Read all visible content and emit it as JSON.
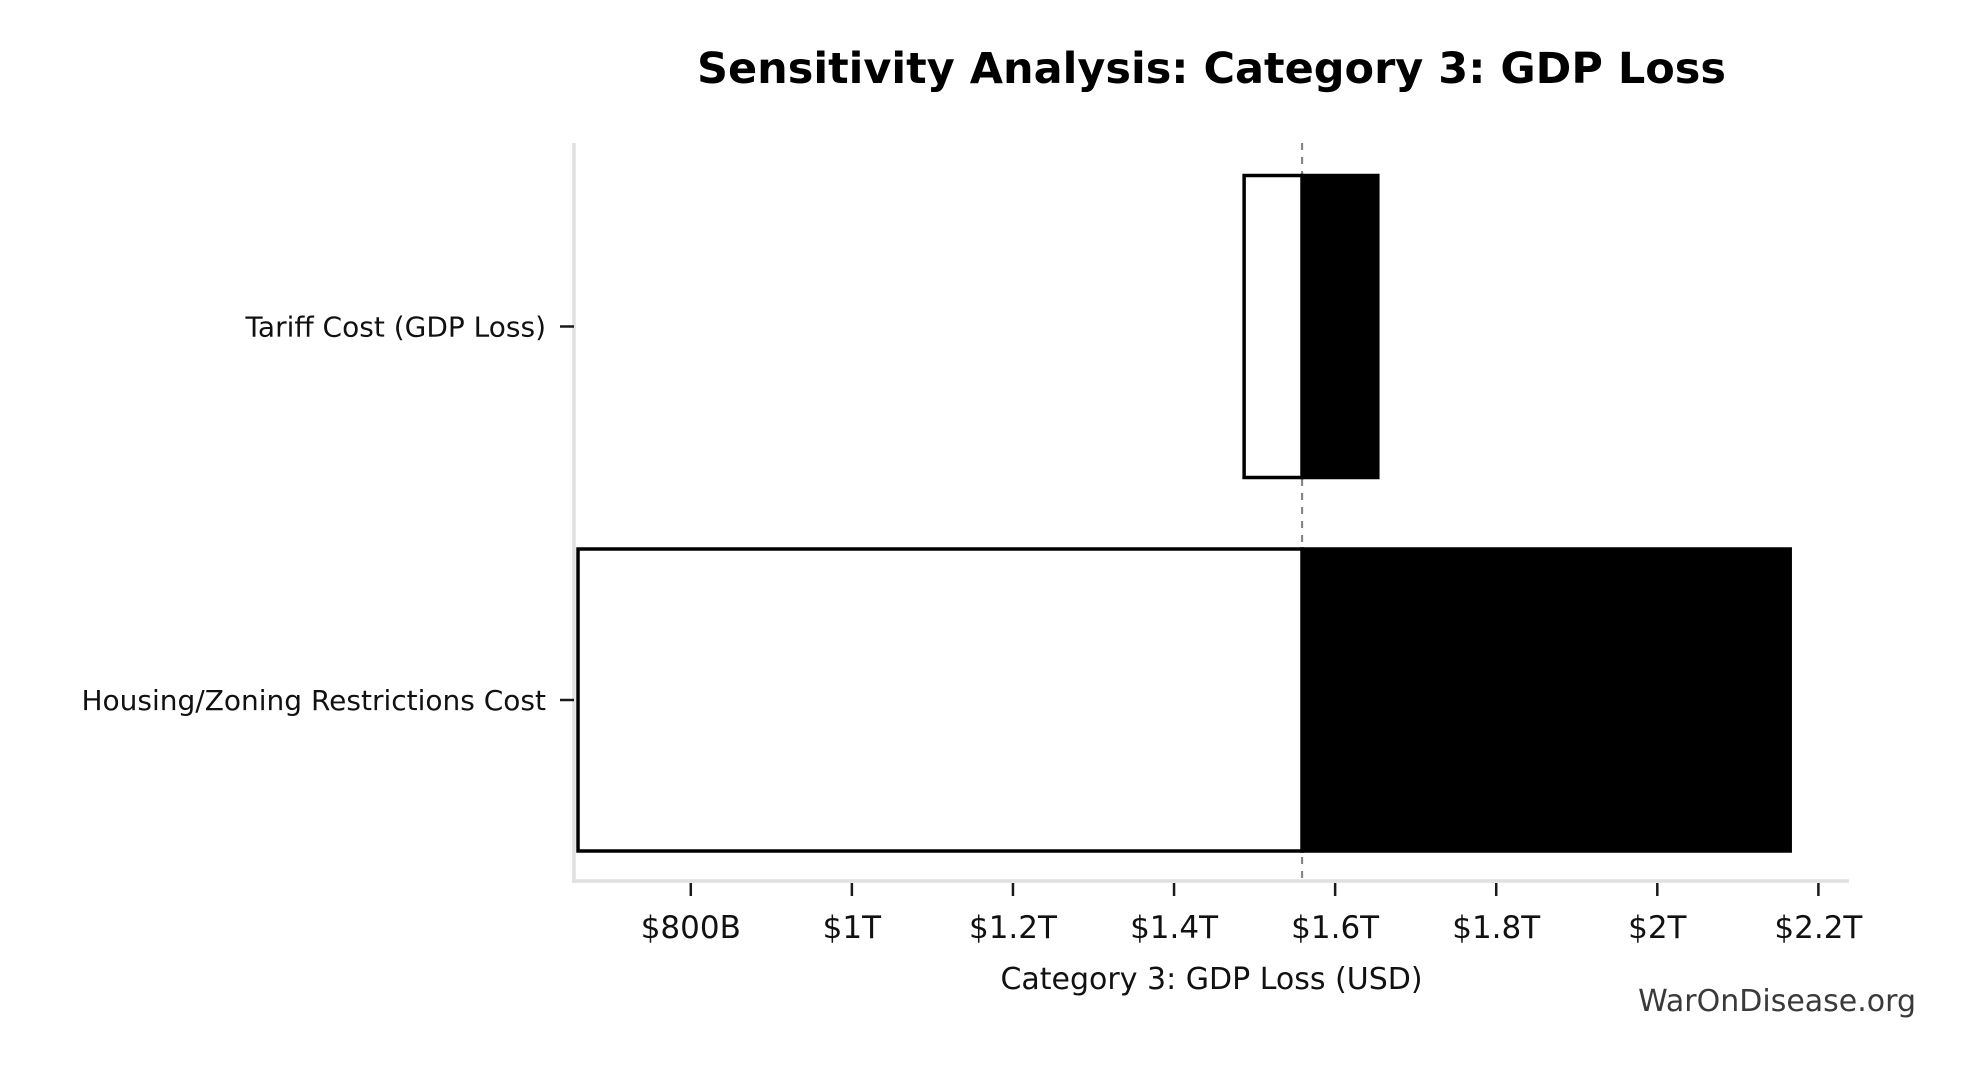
{
  "chart_data": {
    "type": "bar",
    "variant": "tornado-sensitivity",
    "title": "Sensitivity Analysis: Category 3: GDP Loss",
    "xlabel": "Category 3: GDP Loss (USD)",
    "unit": "trillions USD",
    "baseline": 1.559,
    "xlim": [
      0.655,
      2.238
    ],
    "xticks": [
      0.8,
      1.0,
      1.2,
      1.4,
      1.6,
      1.8,
      2.0,
      2.2
    ],
    "xtick_labels": [
      "$800B",
      "$1T",
      "$1.2T",
      "$1.4T",
      "$1.6T",
      "$1.8T",
      "$2T",
      "$2.2T"
    ],
    "categories": [
      "Tariff Cost (GDP Loss)",
      "Housing/Zoning Restrictions Cost"
    ],
    "bars": [
      {
        "label": "Tariff Cost (GDP Loss)",
        "low": 1.487,
        "high": 1.653
      },
      {
        "label": "Housing/Zoning Restrictions Cost",
        "low": 0.66,
        "high": 2.165
      }
    ],
    "colors": {
      "low_segment_fill": "#ffffff",
      "high_segment_fill": "#000000",
      "bar_edge": "#000000",
      "baseline_dash": "#7f7f7f",
      "axis_line": "#e0e0e0",
      "tick_mark": "#1a1a1a",
      "text": "#111111"
    },
    "grid": false,
    "legend": false
  },
  "footer": {
    "watermark": "WarOnDisease.org"
  }
}
